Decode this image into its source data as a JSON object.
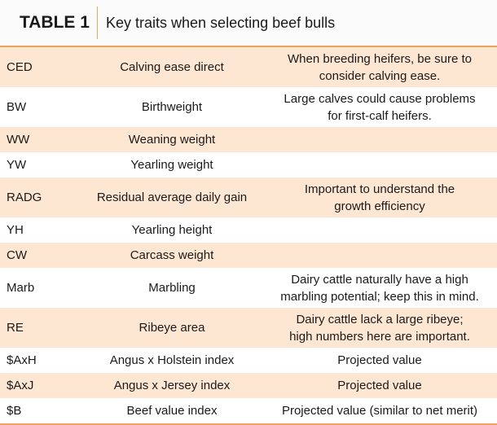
{
  "header": {
    "label": "TABLE 1",
    "title": "Key traits when selecting beef bulls"
  },
  "rows": [
    {
      "code": "CED",
      "trait": "Calving ease direct",
      "note": [
        "When breeding heifers, be sure to",
        "consider calving ease."
      ]
    },
    {
      "code": "BW",
      "trait": "Birthweight",
      "note": [
        "Large calves could cause problems",
        "for first-calf heifers."
      ]
    },
    {
      "code": "WW",
      "trait": "Weaning weight"
    },
    {
      "code": "YW",
      "trait": "Yearling weight"
    },
    {
      "code": "RADG",
      "trait": "Residual average daily gain",
      "note": [
        "Important to understand the",
        "growth efficiency"
      ]
    },
    {
      "code": "YH",
      "trait": "Yearling height"
    },
    {
      "code": "CW",
      "trait": "Carcass weight"
    },
    {
      "code": "Marb",
      "trait": "Marbling",
      "note": [
        "Dairy cattle naturally have a high",
        "marbling potential; keep this in mind."
      ]
    },
    {
      "code": "RE",
      "trait": "Ribeye area",
      "note": [
        "Dairy cattle lack a large ribeye;",
        "high numbers here are important."
      ]
    },
    {
      "code": "$AxH",
      "trait": "Angus x Holstein index",
      "note": [
        "Projected value"
      ]
    },
    {
      "code": "$AxJ",
      "trait": "Angus x Jersey index",
      "note": [
        "Projected value"
      ]
    },
    {
      "code": "$B",
      "trait": "Beef value index",
      "note": [
        "Projected value (similar to net merit)"
      ]
    }
  ]
}
